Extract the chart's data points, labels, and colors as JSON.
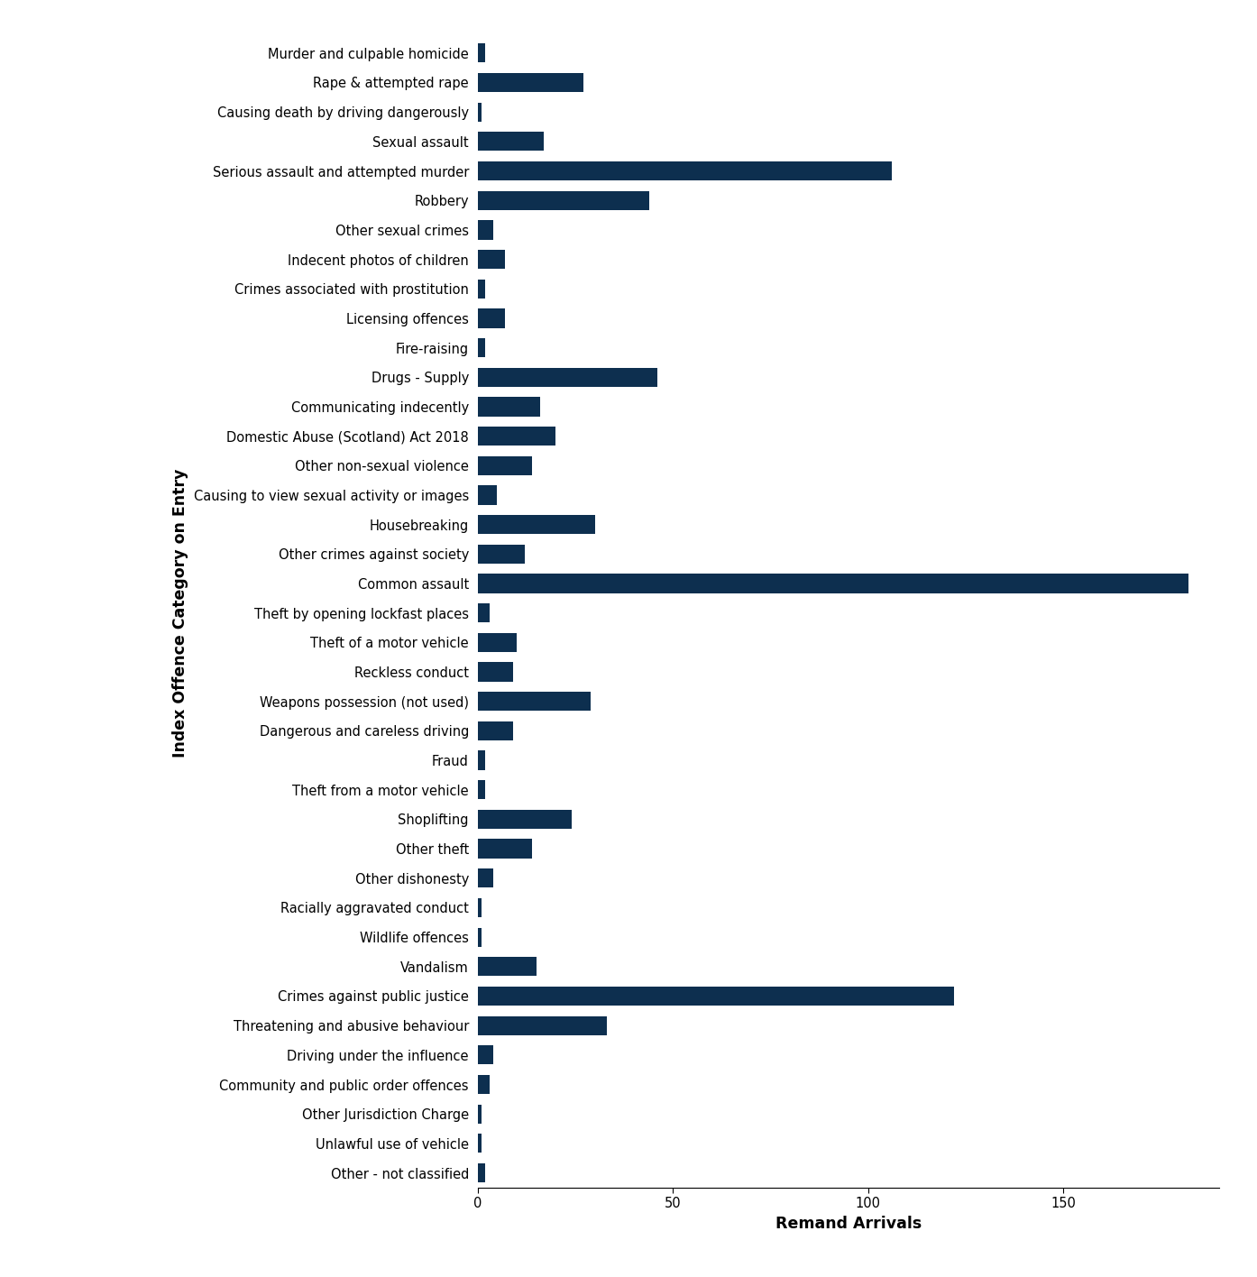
{
  "categories": [
    "Murder and culpable homicide",
    "Rape & attempted rape",
    "Causing death by driving dangerously",
    "Sexual assault",
    "Serious assault and attempted murder",
    "Robbery",
    "Other sexual crimes",
    "Indecent photos of children",
    "Crimes associated with prostitution",
    "Licensing offences",
    "Fire-raising",
    "Drugs - Supply",
    "Communicating indecently",
    "Domestic Abuse (Scotland) Act 2018",
    "Other non-sexual violence",
    "Causing to view sexual activity or images",
    "Housebreaking",
    "Other crimes against society",
    "Common assault",
    "Theft by opening lockfast places",
    "Theft of a motor vehicle",
    "Reckless conduct",
    "Weapons possession (not used)",
    "Dangerous and careless driving",
    "Fraud",
    "Theft from a motor vehicle",
    "Shoplifting",
    "Other theft",
    "Other dishonesty",
    "Racially aggravated conduct",
    "Wildlife offences",
    "Vandalism",
    "Crimes against public justice",
    "Threatening and abusive behaviour",
    "Driving under the influence",
    "Community and public order offences",
    "Other Jurisdiction Charge",
    "Unlawful use of vehicle",
    "Other - not classified"
  ],
  "values": [
    2,
    27,
    1,
    17,
    106,
    44,
    4,
    7,
    2,
    7,
    2,
    46,
    16,
    20,
    14,
    5,
    30,
    12,
    182,
    3,
    10,
    9,
    29,
    9,
    2,
    2,
    24,
    14,
    4,
    1,
    1,
    15,
    122,
    33,
    4,
    3,
    1,
    1,
    2
  ],
  "bar_color": "#0d2f4f",
  "xlabel": "Remand Arrivals",
  "ylabel": "Index Offence Category on Entry",
  "xlim": [
    0,
    190
  ],
  "xticks": [
    0,
    50,
    100,
    150
  ],
  "background_color": "#ffffff",
  "label_fontsize": 10.5,
  "axis_label_fontsize": 12.5,
  "tick_fontsize": 10.5,
  "bar_height": 0.65
}
